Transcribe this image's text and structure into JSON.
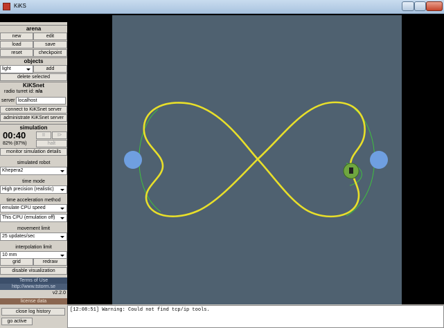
{
  "window": {
    "title": "KiKS"
  },
  "arena": {
    "header": "arena",
    "buttons": [
      "new",
      "edit",
      "load",
      "save",
      "reset",
      "checkpoint"
    ]
  },
  "objects": {
    "header": "objects",
    "type": "light",
    "add": "add",
    "delete": "delete selected"
  },
  "kiksnet": {
    "header": "KiKSnet",
    "radio_label": "radio turret id:",
    "radio_value": "n/a",
    "server_label": "server",
    "server_value": "localhost",
    "connect": "connect to KiKSnet server",
    "administrate": "administrate KiKSnet server"
  },
  "simulation": {
    "header": "simulation",
    "time": "00:40",
    "pause": "II",
    "play": "I>",
    "speed": "82% (87%)",
    "halt": "halt",
    "monitor": "monitor simulation details"
  },
  "settings": [
    {
      "label": "simulated robot",
      "values": [
        "Khepera2"
      ]
    },
    {
      "label": "time mode",
      "values": [
        "High precision (realistic)"
      ]
    },
    {
      "label": "time acceleration method",
      "values": [
        "emulate CPU speed",
        "This CPU (emulation off)"
      ]
    },
    {
      "label": "movement limit",
      "values": [
        "25 updates/sec"
      ]
    },
    {
      "label": "interpolation limit",
      "values": [
        "10 mm"
      ]
    }
  ],
  "view": {
    "grid": "grid",
    "redraw": "redraw",
    "disable": "disable visualization"
  },
  "links": {
    "terms": "Terms of Use",
    "url": "http://www.tstorm.se",
    "version": "v2.2.0",
    "license": "license data"
  },
  "log": {
    "close": "close log history",
    "go_active": "go active",
    "entries": [
      "[12:08:51] Warning: Could not find tcp/ip tools."
    ]
  }
}
